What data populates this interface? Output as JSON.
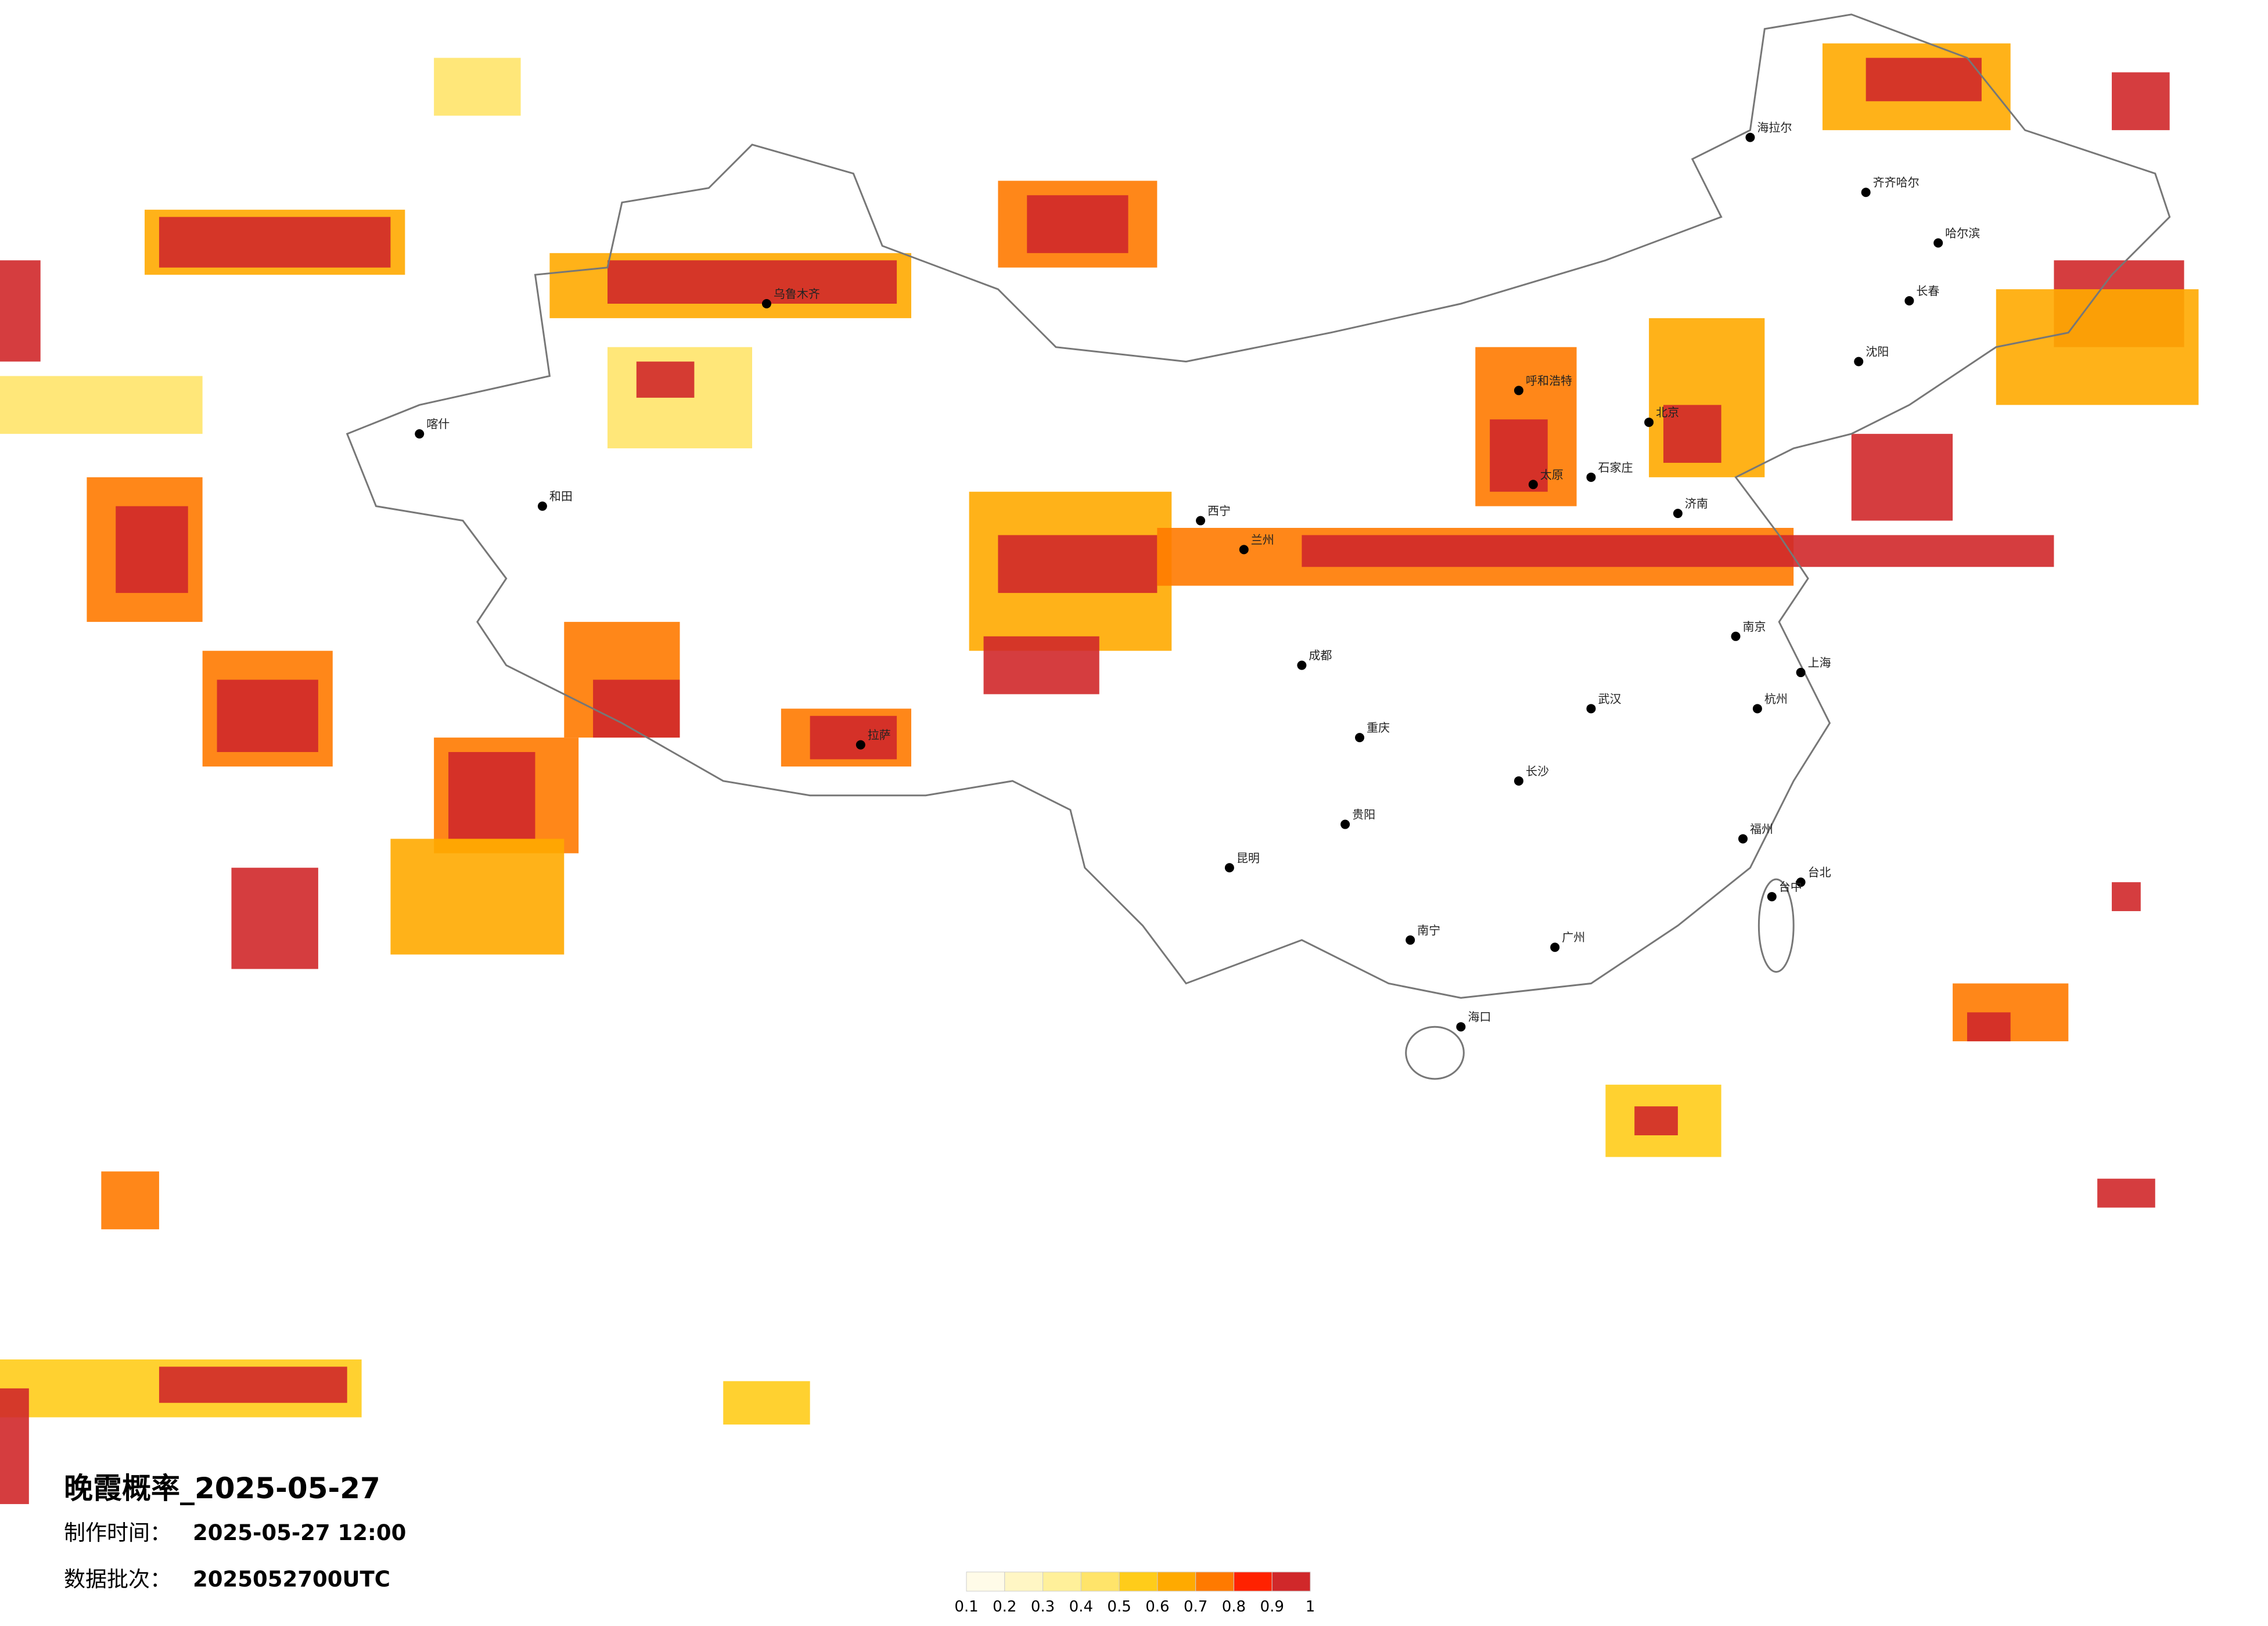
{
  "header": {
    "title": "晚霞概率_2025-05-27",
    "made_label": "制作时间：",
    "made_value": "2025-05-27 12:00",
    "batch_label": "数据批次：",
    "batch_value": "2025052700UTC"
  },
  "colorbar": {
    "colors": [
      "#fffbe8",
      "#fff6c4",
      "#fff09a",
      "#ffe46a",
      "#ffcc1a",
      "#ffaa00",
      "#ff7a00",
      "#ff2200",
      "#d0282a"
    ],
    "ticks": [
      0.1,
      0.2,
      0.3,
      0.4,
      0.5,
      0.6,
      0.7,
      0.8,
      0.9,
      1
    ]
  },
  "cities": [
    "海拉尔",
    "齐齐哈尔",
    "哈尔滨",
    "长春",
    "沈阳",
    "呼和浩特",
    "北京",
    "石家庄",
    "太原",
    "济南",
    "西宁",
    "兰州",
    "成都",
    "重庆",
    "武汉",
    "长沙",
    "南京",
    "上海",
    "杭州",
    "福州",
    "广州",
    "南宁",
    "昆明",
    "贵阳",
    "拉萨",
    "乌鲁木齐",
    "喀什",
    "和田",
    "海口",
    "台北",
    "台中"
  ]
}
